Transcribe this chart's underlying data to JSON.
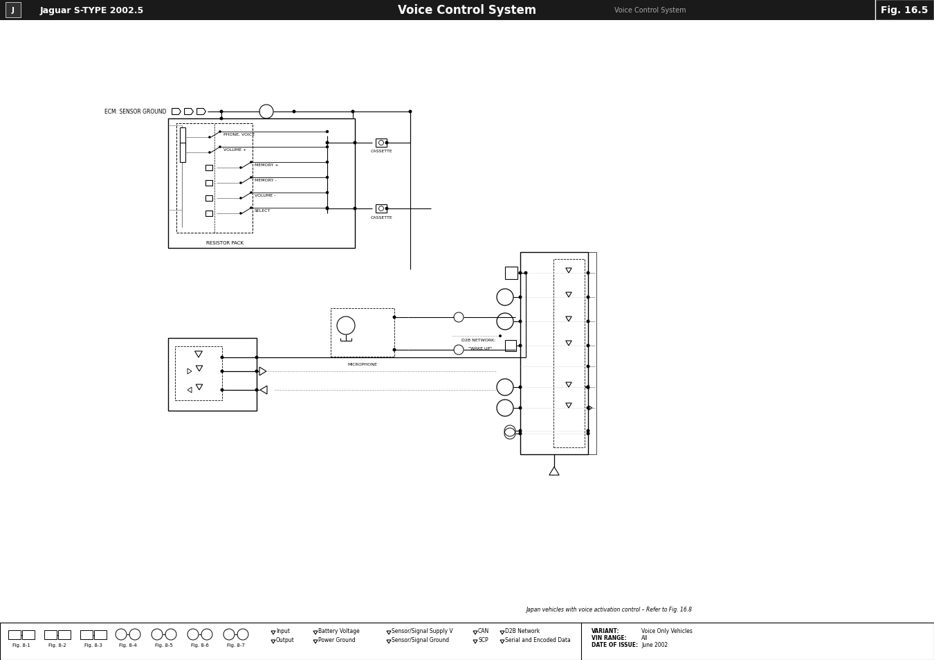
{
  "title": "Voice Control System",
  "subtitle": "Voice Control System",
  "fig_label": "Fig. 16.5",
  "car_model": "Jaguar S-TYPE 2002.5",
  "variant_label": "VARIANT:",
  "variant_value": "Voice Only Vehicles",
  "vin_label": "VIN RANGE:",
  "vin_value": "All",
  "doi_label": "DATE OF ISSUE:",
  "doi_value": "June 2002",
  "note": "Japan vehicles with voice activation control – Refer to Fig. 16.8",
  "bg_color": "#ffffff",
  "header_bg": "#1a1a1a",
  "ecm_label": "ECM: SENSOR GROUND",
  "resistor_pack_label": "RESISTOR PACK",
  "cassette_label": "CASSETTE",
  "microphone_label": "MICROPHONE",
  "d2b_label1": "D2B NETWORK:",
  "d2b_label2": "\"WAKE UP\"",
  "switches": [
    "PHONE, VOICE",
    "VOLUME +",
    "MEMORY +",
    "MEMORY -",
    "VOLUME -",
    "SELECT"
  ],
  "fig_refs": [
    "Fig. 8-1",
    "Fig. 8-2",
    "Fig. 8-3",
    "Fig. 8-4",
    "Fig. 8-5",
    "Fig. 8-6",
    "Fig. 8-7"
  ],
  "legend_row1": [
    "Input",
    "Battery Voltage",
    "Sensor/Signal Supply V",
    "CAN",
    "D2B Network"
  ],
  "legend_row2": [
    "Output",
    "Power Ground",
    "Sensor/Signal Ground",
    "SCP",
    "Serial and Encoded Data"
  ]
}
